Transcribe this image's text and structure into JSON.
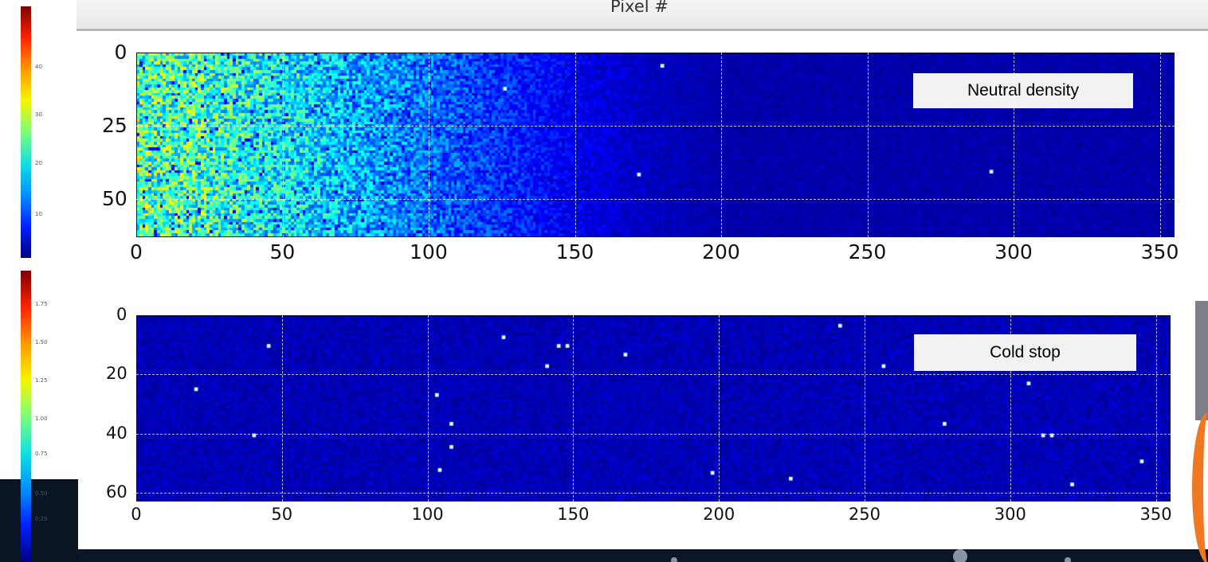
{
  "header": {
    "label": "Pixel #"
  },
  "colors": {
    "background_dark": "#0a1524",
    "annotation_box": "#f2f2f2",
    "colormap": "jet"
  },
  "chart_data": [
    {
      "type": "heatmap",
      "title": "",
      "annotation": "Neutral density",
      "colormap": "jet",
      "x_ticks": [
        "0",
        "50",
        "100",
        "150",
        "200",
        "250",
        "300",
        "350"
      ],
      "y_ticks": [
        "0",
        "25",
        "50"
      ],
      "xlim": [
        0,
        355
      ],
      "ylim": [
        63,
        0
      ],
      "grid": true,
      "colorbar": {
        "ticks": [
          "40",
          "30",
          "20",
          "10"
        ],
        "range": [
          0,
          47
        ]
      },
      "profile_description": "high values near x=0 decreasing toward x≈150, uniform low beyond",
      "column_profile": [
        {
          "x": 0,
          "value": 22
        },
        {
          "x": 25,
          "value": 20
        },
        {
          "x": 50,
          "value": 17
        },
        {
          "x": 75,
          "value": 14
        },
        {
          "x": 100,
          "value": 11
        },
        {
          "x": 125,
          "value": 8
        },
        {
          "x": 150,
          "value": 5
        },
        {
          "x": 175,
          "value": 3
        },
        {
          "x": 200,
          "value": 2
        },
        {
          "x": 250,
          "value": 2
        },
        {
          "x": 300,
          "value": 2
        },
        {
          "x": 355,
          "value": 2
        }
      ],
      "hot_pixels": [
        {
          "x": 172,
          "y": 42
        },
        {
          "x": 180,
          "y": 4
        },
        {
          "x": 293,
          "y": 41
        },
        {
          "x": 126,
          "y": 12
        }
      ]
    },
    {
      "type": "heatmap",
      "title": "",
      "annotation": "Cold stop",
      "colormap": "jet",
      "x_ticks": [
        "0",
        "50",
        "100",
        "150",
        "200",
        "250",
        "300",
        "350"
      ],
      "y_ticks": [
        "0",
        "20",
        "40",
        "60"
      ],
      "xlim": [
        0,
        355
      ],
      "ylim": [
        63,
        0
      ],
      "grid": true,
      "colorbar": {
        "ticks": [
          "1.75",
          "1.50",
          "1.25",
          "1.00",
          "0.75",
          "0.50",
          "0.25"
        ],
        "range": [
          0,
          1.9
        ]
      },
      "background_value": 0.1,
      "hot_pixels": [
        {
          "x": 45,
          "y": 10
        },
        {
          "x": 40,
          "y": 41
        },
        {
          "x": 20,
          "y": 25
        },
        {
          "x": 103,
          "y": 27
        },
        {
          "x": 108,
          "y": 37
        },
        {
          "x": 108,
          "y": 45
        },
        {
          "x": 104,
          "y": 53
        },
        {
          "x": 126,
          "y": 7
        },
        {
          "x": 145,
          "y": 10
        },
        {
          "x": 148,
          "y": 10
        },
        {
          "x": 141,
          "y": 17
        },
        {
          "x": 168,
          "y": 13
        },
        {
          "x": 198,
          "y": 54
        },
        {
          "x": 225,
          "y": 56
        },
        {
          "x": 242,
          "y": 3
        },
        {
          "x": 257,
          "y": 17
        },
        {
          "x": 278,
          "y": 37
        },
        {
          "x": 307,
          "y": 23
        },
        {
          "x": 312,
          "y": 41
        },
        {
          "x": 315,
          "y": 41
        },
        {
          "x": 322,
          "y": 58
        },
        {
          "x": 346,
          "y": 50
        }
      ]
    }
  ]
}
